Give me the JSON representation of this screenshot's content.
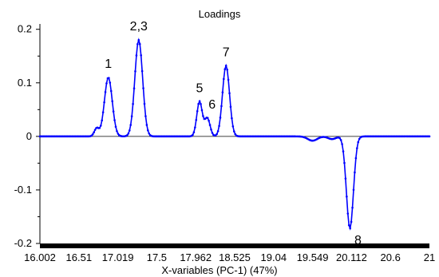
{
  "chart_data": {
    "type": "line",
    "title": "Loadings",
    "xlabel": "X-variables (PC-1) (47%)",
    "ylabel": "",
    "xlim": [
      16.002,
      21
    ],
    "ylim": [
      -0.2,
      0.21
    ],
    "x_tick_labels": [
      "16.002",
      "16.51",
      "17.019",
      "17.5",
      "17.962",
      "18.525",
      "19.04",
      "19.549",
      "20.112",
      "20.6",
      "21"
    ],
    "y_tick_labels": [
      "0.2",
      "0.1",
      "0",
      "-0.1",
      "-0.2"
    ],
    "y_ticks": [
      0.2,
      0.1,
      0,
      -0.1,
      -0.2
    ],
    "grid": false,
    "series": [
      {
        "color": "#0000ff",
        "peaks": [
          {
            "label": "1",
            "x": 16.88,
            "y": 0.11,
            "width": 0.05
          },
          {
            "label": "2,3",
            "x": 17.27,
            "y": 0.18,
            "width": 0.05
          },
          {
            "label": "5",
            "x": 18.05,
            "y": 0.065,
            "width": 0.035
          },
          {
            "label": "6",
            "x": 18.15,
            "y": 0.034,
            "width": 0.035
          },
          {
            "label": "7",
            "x": 18.39,
            "y": 0.132,
            "width": 0.045
          },
          {
            "label": "8",
            "x": 19.98,
            "y": -0.172,
            "width": 0.045
          },
          {
            "label": "",
            "x": 16.73,
            "y": 0.015,
            "width": 0.03
          },
          {
            "label": "",
            "x": 19.5,
            "y": -0.008,
            "width": 0.06
          },
          {
            "label": "",
            "x": 19.75,
            "y": -0.005,
            "width": 0.05
          }
        ],
        "x_start": 16.002,
        "x_end": 21,
        "n_points": 340
      }
    ]
  }
}
